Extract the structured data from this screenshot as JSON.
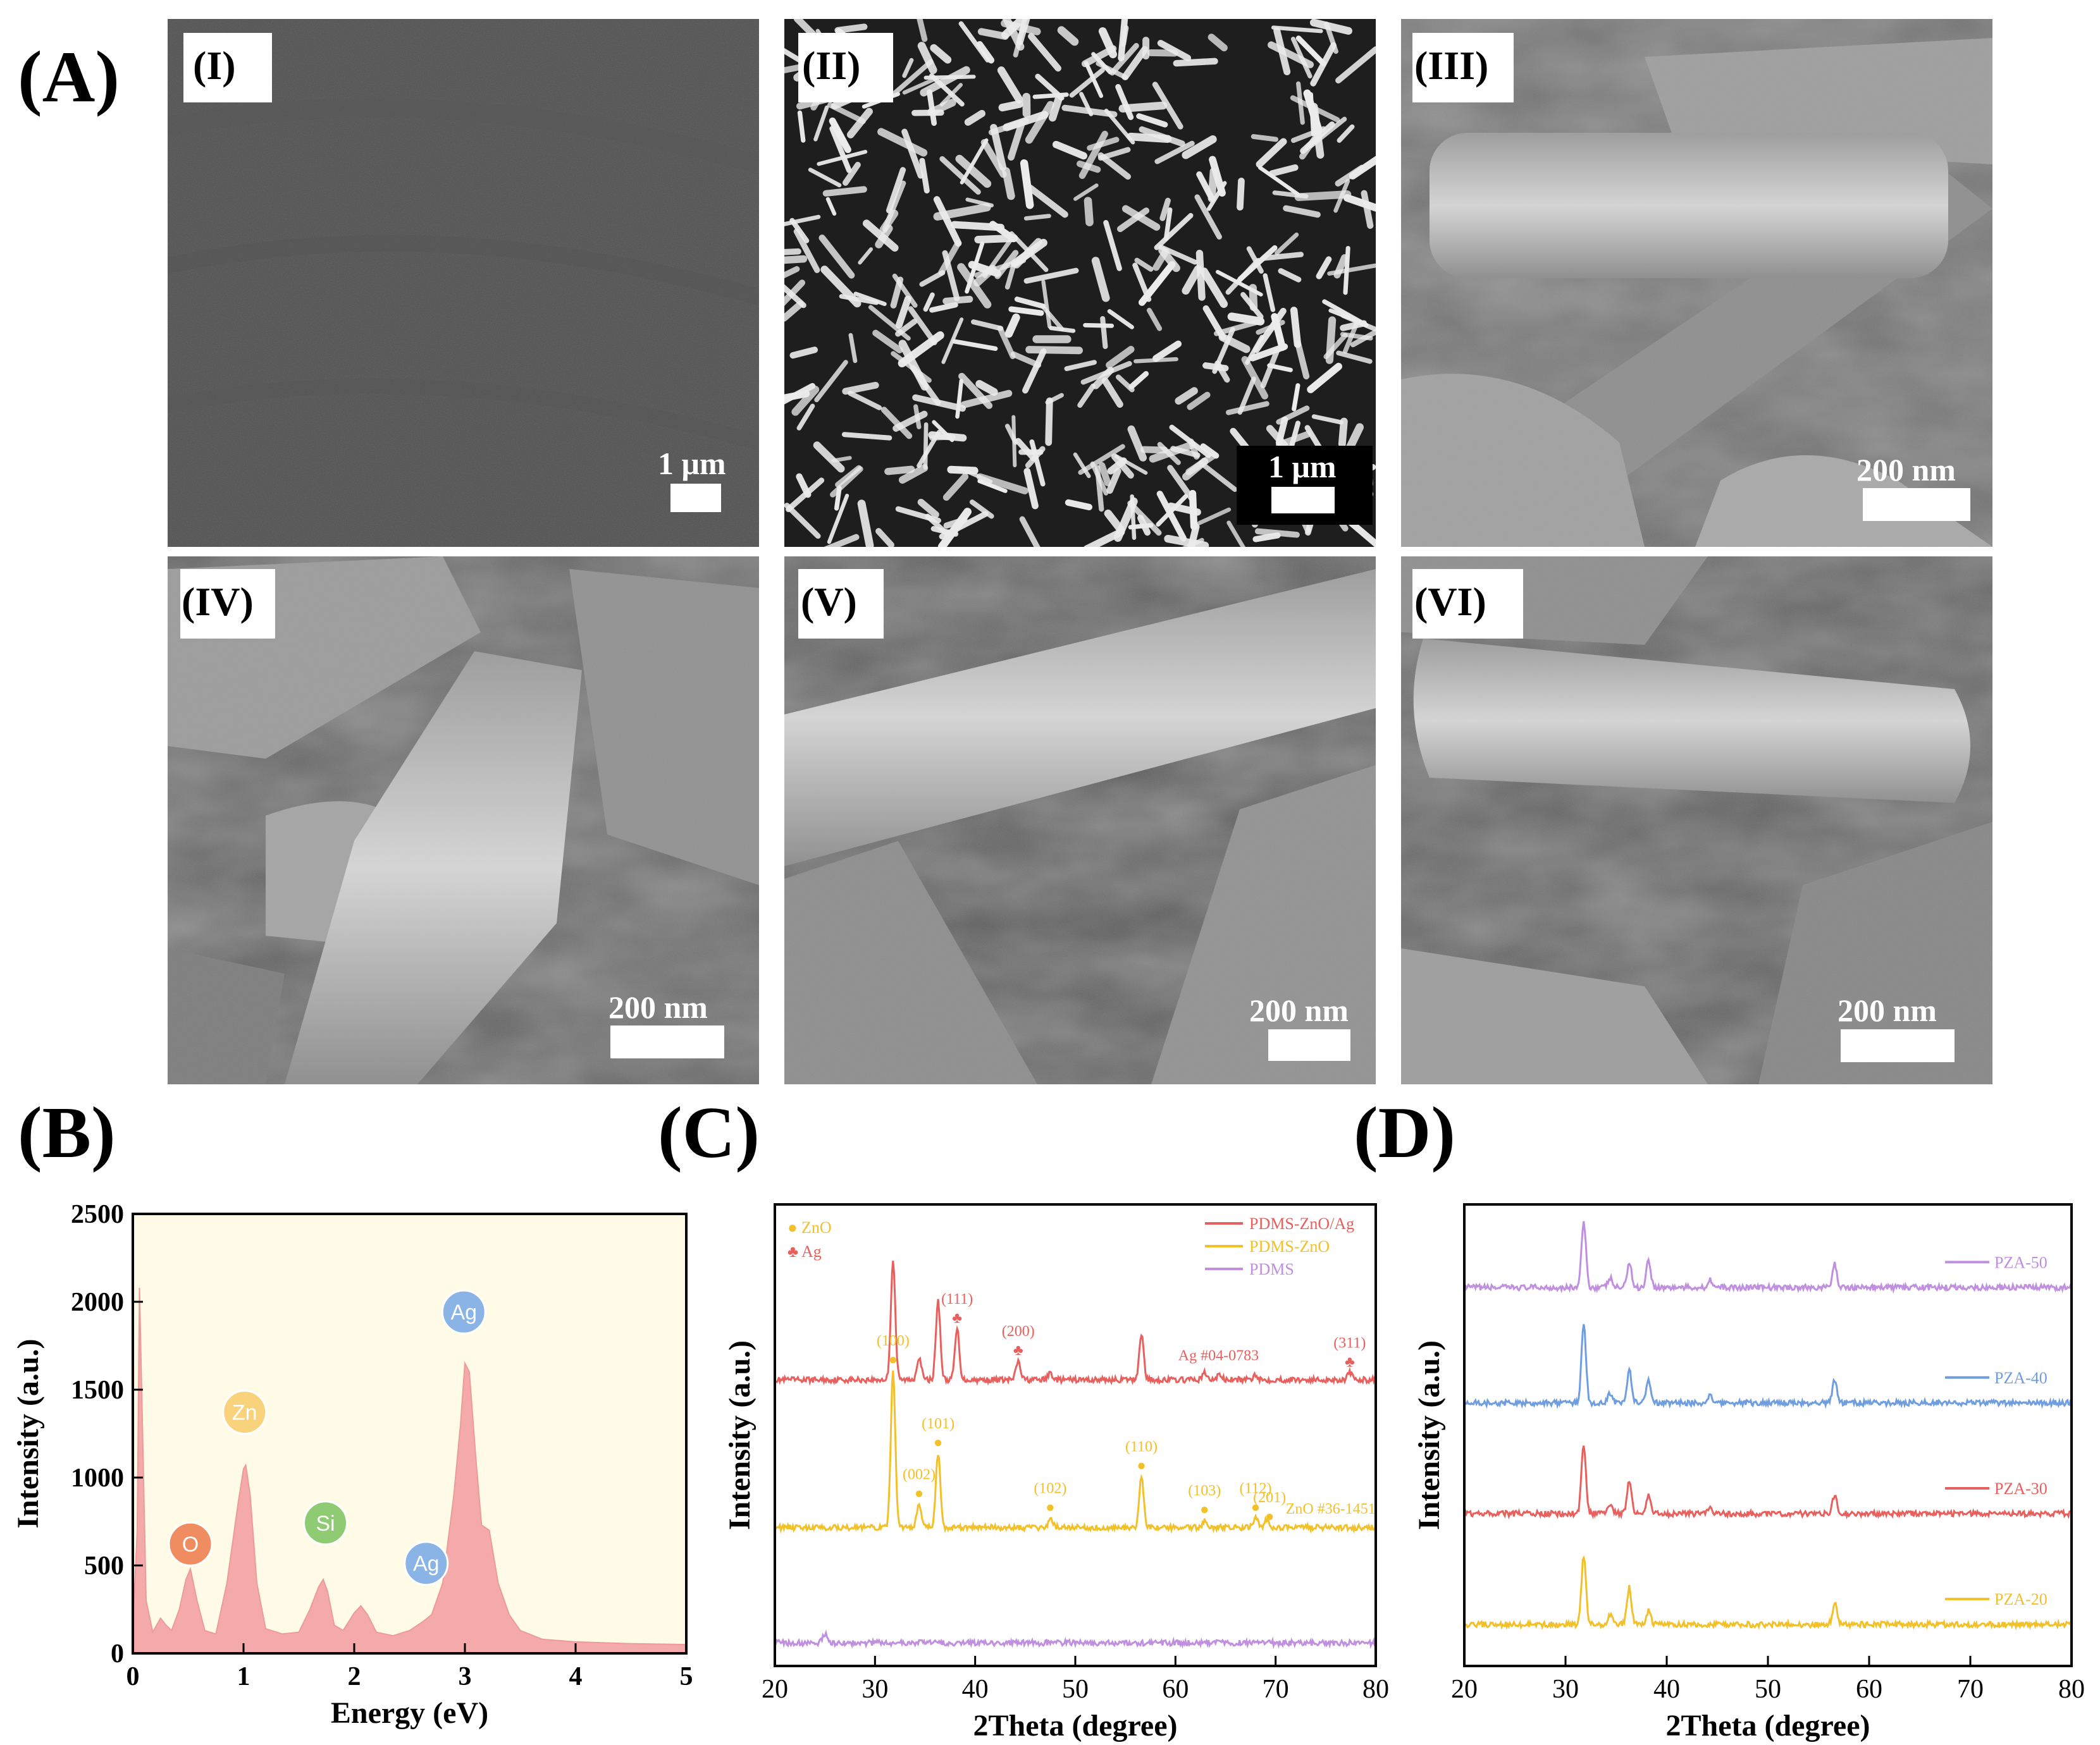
{
  "panels": {
    "A": "(A)",
    "B": "(B)",
    "C": "(C)",
    "D": "(D)"
  },
  "sem": [
    {
      "label": "(I)",
      "scale_bar": "1 μm"
    },
    {
      "label": "(II)",
      "scale_bar": "1 μm"
    },
    {
      "label": "(III)",
      "scale_bar": "200 nm"
    },
    {
      "label": "(IV)",
      "scale_bar": "200 nm"
    },
    {
      "label": "(V)",
      "scale_bar": "200 nm"
    },
    {
      "label": "(VI)",
      "scale_bar": "200 nm"
    }
  ],
  "chart_data": [
    {
      "panel": "B",
      "type": "area",
      "xlabel": "Energy (eV)",
      "ylabel": "Intensity (a.u.)",
      "xlim": [
        0,
        5
      ],
      "ylim": [
        0,
        2500
      ],
      "xticks": [
        "0",
        "1",
        "2",
        "3",
        "4",
        "5"
      ],
      "yticks": [
        "0",
        "500",
        "1000",
        "1500",
        "2000",
        "2500"
      ],
      "color": "#f4aaaa",
      "background": "#fffbe6",
      "spectrum": {
        "x": [
          0,
          0.04,
          0.06,
          0.08,
          0.12,
          0.18,
          0.25,
          0.3,
          0.35,
          0.42,
          0.48,
          0.52,
          0.58,
          0.65,
          0.75,
          0.85,
          0.95,
          1.0,
          1.02,
          1.06,
          1.12,
          1.2,
          1.35,
          1.5,
          1.6,
          1.68,
          1.72,
          1.76,
          1.82,
          1.9,
          2.0,
          2.06,
          2.12,
          2.2,
          2.35,
          2.5,
          2.62,
          2.7,
          2.8,
          2.9,
          2.96,
          3.0,
          3.04,
          3.1,
          3.15,
          3.22,
          3.3,
          3.4,
          3.5,
          3.7,
          4.0,
          4.5,
          5.0
        ],
        "y": [
          150,
          700,
          2080,
          1500,
          300,
          120,
          200,
          160,
          130,
          250,
          420,
          480,
          300,
          130,
          110,
          400,
          850,
          1050,
          1070,
          900,
          400,
          140,
          110,
          120,
          250,
          380,
          420,
          350,
          160,
          130,
          230,
          270,
          220,
          120,
          100,
          130,
          180,
          220,
          400,
          900,
          1300,
          1650,
          1600,
          1100,
          730,
          700,
          400,
          220,
          130,
          80,
          65,
          55,
          50
        ]
      },
      "peaks": [
        {
          "element": "O",
          "x": 0.52,
          "y": 460,
          "color": "#f08d60"
        },
        {
          "element": "Zn",
          "x": 1.01,
          "y": 1210,
          "color": "#f8d37c"
        },
        {
          "element": "Si",
          "x": 1.74,
          "y": 580,
          "color": "#8ecb72"
        },
        {
          "element": "Ag",
          "x": 2.65,
          "y": 350,
          "color": "#8ab4e5"
        },
        {
          "element": "Ag",
          "x": 2.99,
          "y": 1780,
          "color": "#8ab4e5"
        }
      ]
    },
    {
      "panel": "C",
      "type": "line",
      "xlabel": "2Theta (degree)",
      "ylabel": "Intensity (a.u.)",
      "xlim": [
        20,
        80
      ],
      "xticks": [
        "20",
        "30",
        "40",
        "50",
        "60",
        "70",
        "80"
      ],
      "symbol_legend": [
        {
          "symbol": "●",
          "label": "ZnO",
          "color": "#f2c029"
        },
        {
          "symbol": "♣",
          "label": "Ag",
          "color": "#e8605e"
        }
      ],
      "series": [
        {
          "name": "PDMS-ZnO/Ag",
          "color": "#e8605e",
          "baseline": 0.62,
          "peaks": [
            [
              31.8,
              0.26
            ],
            [
              34.4,
              0.05
            ],
            [
              36.3,
              0.17
            ],
            [
              38.2,
              0.11
            ],
            [
              44.3,
              0.04
            ],
            [
              47.5,
              0.015
            ],
            [
              56.6,
              0.1
            ],
            [
              62.9,
              0.015
            ],
            [
              64.4,
              0.012
            ],
            [
              68.0,
              0.012
            ],
            [
              77.4,
              0.015
            ]
          ]
        },
        {
          "name": "PDMS-ZnO",
          "color": "#f2c029",
          "baseline": 0.3,
          "peaks": [
            [
              31.8,
              0.34
            ],
            [
              34.4,
              0.05
            ],
            [
              36.3,
              0.16
            ],
            [
              47.5,
              0.02
            ],
            [
              56.6,
              0.11
            ],
            [
              62.9,
              0.015
            ],
            [
              68.0,
              0.02
            ],
            [
              69.1,
              0.015
            ]
          ]
        },
        {
          "name": "PDMS",
          "color": "#c08fe0",
          "baseline": 0.05,
          "peaks": [
            [
              25.0,
              0.02
            ]
          ]
        }
      ],
      "peak_labels": [
        {
          "text": "(111)",
          "x": 38.2,
          "color": "#e8605e",
          "marker": "♣"
        },
        {
          "text": "(200)",
          "x": 44.3,
          "color": "#e8605e",
          "marker": "♣"
        },
        {
          "text": "Ag #04-0783",
          "x": 64.3,
          "color": "#e8605e",
          "marker": ""
        },
        {
          "text": "(311)",
          "x": 77.4,
          "color": "#e8605e",
          "marker": "♣"
        },
        {
          "text": "(100)",
          "x": 31.8,
          "color": "#f2c029",
          "marker": "●"
        },
        {
          "text": "(002)",
          "x": 34.4,
          "color": "#f2c029",
          "marker": "●"
        },
        {
          "text": "(101)",
          "x": 36.3,
          "color": "#f2c029",
          "marker": "●"
        },
        {
          "text": "(102)",
          "x": 47.5,
          "color": "#f2c029",
          "marker": "●"
        },
        {
          "text": "(110)",
          "x": 56.6,
          "color": "#f2c029",
          "marker": "●"
        },
        {
          "text": "(103)",
          "x": 62.9,
          "color": "#f2c029",
          "marker": "●"
        },
        {
          "text": "(112)",
          "x": 68.0,
          "color": "#f2c029",
          "marker": "●"
        },
        {
          "text": "(201)",
          "x": 69.4,
          "color": "#f2c029",
          "marker": "●"
        },
        {
          "text": "ZnO #36-1451",
          "x": 75.5,
          "color": "#f2c029",
          "marker": ""
        }
      ]
    },
    {
      "panel": "D",
      "type": "line",
      "xlabel": "2Theta (degree)",
      "ylabel": "Intensity (a.u.)",
      "xlim": [
        20,
        80
      ],
      "xticks": [
        "20",
        "30",
        "40",
        "50",
        "60",
        "70",
        "80"
      ],
      "series": [
        {
          "name": "PZA-50",
          "color": "#c08fe0",
          "baseline": 0.82,
          "peaks": [
            [
              31.8,
              0.14
            ],
            [
              34.4,
              0.02
            ],
            [
              36.3,
              0.055
            ],
            [
              38.2,
              0.06
            ],
            [
              44.3,
              0.018
            ],
            [
              56.6,
              0.05
            ]
          ]
        },
        {
          "name": "PZA-40",
          "color": "#6f9ee0",
          "baseline": 0.57,
          "peaks": [
            [
              31.8,
              0.17
            ],
            [
              34.4,
              0.02
            ],
            [
              36.3,
              0.07
            ],
            [
              38.2,
              0.05
            ],
            [
              44.3,
              0.015
            ],
            [
              56.6,
              0.05
            ]
          ]
        },
        {
          "name": "PZA-30",
          "color": "#e8605e",
          "baseline": 0.33,
          "peaks": [
            [
              31.8,
              0.15
            ],
            [
              34.4,
              0.02
            ],
            [
              36.3,
              0.07
            ],
            [
              38.2,
              0.04
            ],
            [
              44.3,
              0.012
            ],
            [
              56.6,
              0.04
            ]
          ]
        },
        {
          "name": "PZA-20",
          "color": "#f2c029",
          "baseline": 0.09,
          "peaks": [
            [
              31.8,
              0.15
            ],
            [
              34.4,
              0.02
            ],
            [
              36.3,
              0.08
            ],
            [
              38.2,
              0.03
            ],
            [
              56.6,
              0.045
            ]
          ]
        }
      ]
    }
  ]
}
